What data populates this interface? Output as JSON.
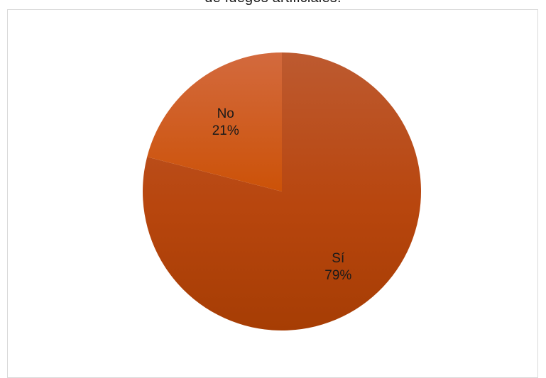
{
  "chart": {
    "title_partial": "de fuegos artificiales."
  },
  "chart_data": {
    "type": "pie",
    "title": "de fuegos artificiales.",
    "categories": [
      "Sí",
      "No"
    ],
    "values": [
      79,
      21
    ],
    "value_format": "percent",
    "labels": [
      {
        "category": "Sí",
        "percent_label": "79%"
      },
      {
        "category": "No",
        "percent_label": "21%"
      }
    ],
    "colors": [
      "#b5440a",
      "#cf5a14"
    ],
    "start": "12 o'clock, clockwise",
    "legend": "none (data labels on slices)"
  }
}
